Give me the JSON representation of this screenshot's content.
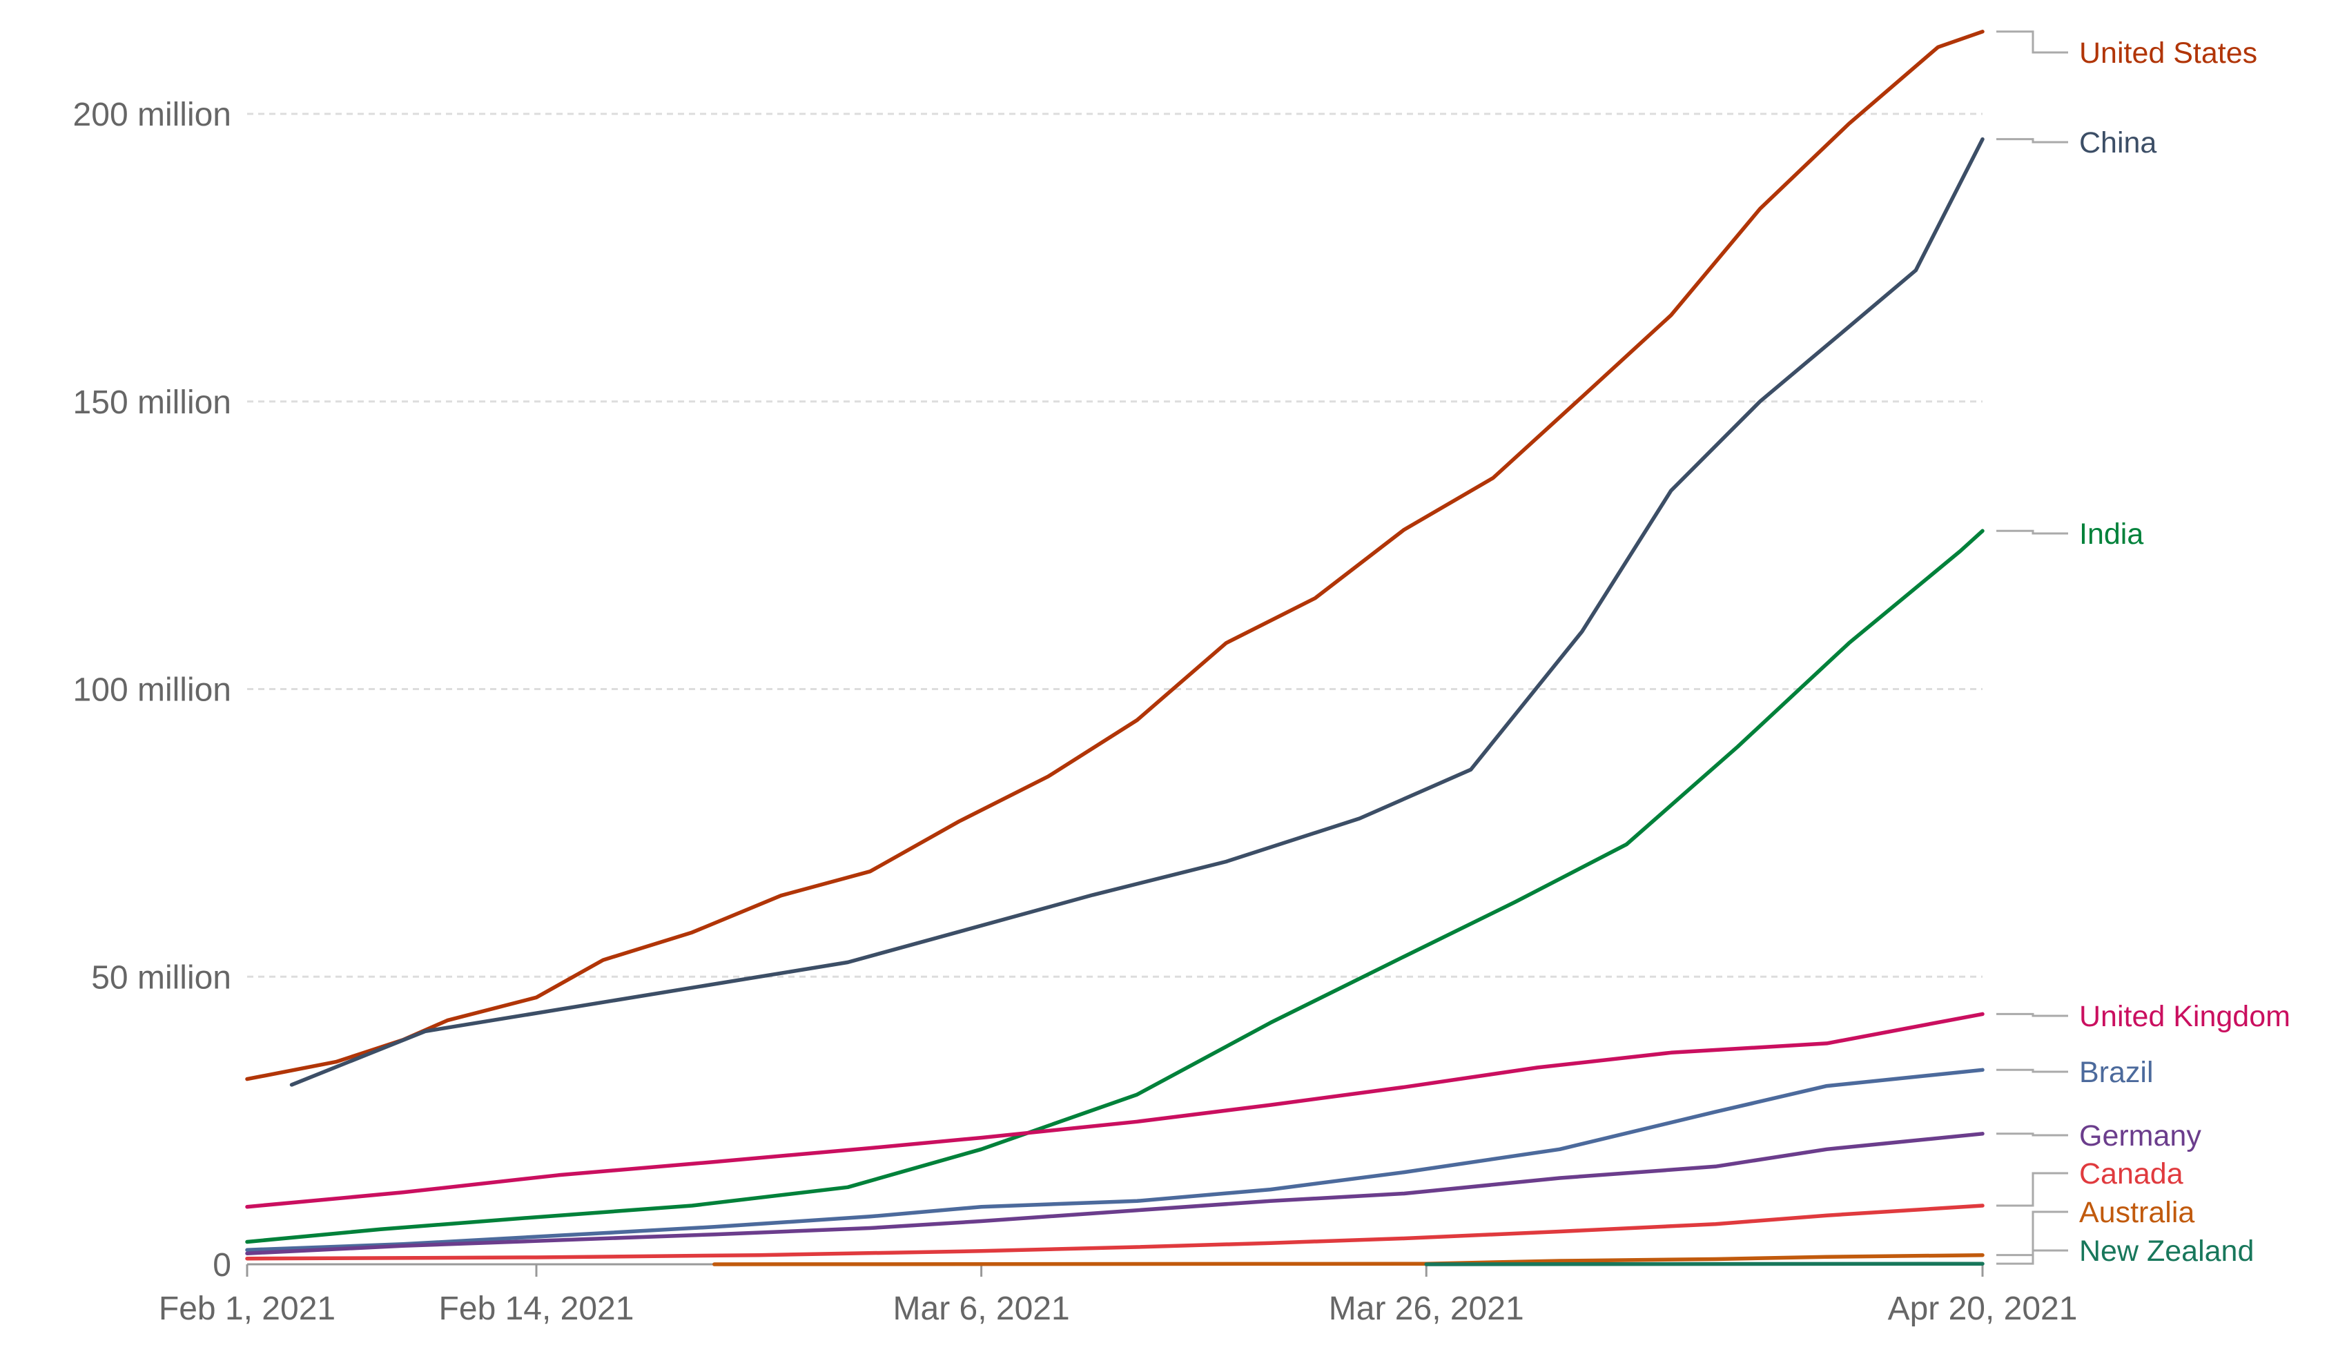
{
  "chart_data": {
    "type": "line",
    "x_range": [
      "2021-02-01",
      "2021-04-20"
    ],
    "ylim": [
      0,
      210000000
    ],
    "y_ticks": [
      {
        "value": 0,
        "label": "0"
      },
      {
        "value": 50000000,
        "label": "50 million"
      },
      {
        "value": 100000000,
        "label": "100 million"
      },
      {
        "value": 150000000,
        "label": "150 million"
      },
      {
        "value": 200000000,
        "label": "200 million"
      }
    ],
    "x_ticks": [
      {
        "date": "2021-02-01",
        "label": "Feb 1, 2021"
      },
      {
        "date": "2021-02-14",
        "label": "Feb 14, 2021"
      },
      {
        "date": "2021-03-06",
        "label": "Mar 6, 2021"
      },
      {
        "date": "2021-03-26",
        "label": "Mar 26, 2021"
      },
      {
        "date": "2021-04-20",
        "label": "Apr 20, 2021"
      }
    ],
    "grid": true,
    "legend": "end-of-line labels on right",
    "series": [
      {
        "name": "United States",
        "color": "#b13507",
        "points": [
          [
            "2021-02-01",
            32.2
          ],
          [
            "2021-02-05",
            35.2
          ],
          [
            "2021-02-08",
            39.0
          ],
          [
            "2021-02-10",
            42.4
          ],
          [
            "2021-02-14",
            46.4
          ],
          [
            "2021-02-17",
            52.9
          ],
          [
            "2021-02-21",
            57.7
          ],
          [
            "2021-02-25",
            64.1
          ],
          [
            "2021-03-01",
            68.3
          ],
          [
            "2021-03-05",
            77.0
          ],
          [
            "2021-03-09",
            84.8
          ],
          [
            "2021-03-13",
            94.6
          ],
          [
            "2021-03-17",
            108.0
          ],
          [
            "2021-03-21",
            115.8
          ],
          [
            "2021-03-25",
            127.7
          ],
          [
            "2021-03-29",
            136.7
          ],
          [
            "2021-04-02",
            150.8
          ],
          [
            "2021-04-06",
            165.0
          ],
          [
            "2021-04-10",
            183.5
          ],
          [
            "2021-04-14",
            198.3
          ],
          [
            "2021-04-18",
            211.6
          ],
          [
            "2021-04-20",
            214.3
          ]
        ]
      },
      {
        "name": "China",
        "color": "#3c4e66",
        "points": [
          [
            "2021-02-03",
            31.2
          ],
          [
            "2021-02-09",
            40.5
          ],
          [
            "2021-02-28",
            52.5
          ],
          [
            "2021-03-11",
            64.2
          ],
          [
            "2021-03-17",
            70.0
          ],
          [
            "2021-03-23",
            77.5
          ],
          [
            "2021-03-28",
            86.0
          ],
          [
            "2021-04-02",
            110.0
          ],
          [
            "2021-04-06",
            134.5
          ],
          [
            "2021-04-10",
            150.0
          ],
          [
            "2021-04-14",
            163.0
          ],
          [
            "2021-04-17",
            172.8
          ],
          [
            "2021-04-20",
            195.6
          ]
        ]
      },
      {
        "name": "India",
        "color": "#00813a",
        "points": [
          [
            "2021-02-01",
            3.9
          ],
          [
            "2021-02-07",
            6.1
          ],
          [
            "2021-02-14",
            8.2
          ],
          [
            "2021-02-21",
            10.2
          ],
          [
            "2021-02-28",
            13.4
          ],
          [
            "2021-03-06",
            20.0
          ],
          [
            "2021-03-13",
            29.5
          ],
          [
            "2021-03-19",
            42.0
          ],
          [
            "2021-03-25",
            53.5
          ],
          [
            "2021-03-30",
            63.0
          ],
          [
            "2021-04-04",
            73.0
          ],
          [
            "2021-04-09",
            90.0
          ],
          [
            "2021-04-14",
            108.0
          ],
          [
            "2021-04-19",
            124.0
          ],
          [
            "2021-04-20",
            127.5
          ]
        ]
      },
      {
        "name": "United Kingdom",
        "color": "#ca0f5f",
        "points": [
          [
            "2021-02-01",
            10.0
          ],
          [
            "2021-02-08",
            12.5
          ],
          [
            "2021-02-15",
            15.5
          ],
          [
            "2021-02-22",
            17.8
          ],
          [
            "2021-03-01",
            20.2
          ],
          [
            "2021-03-06",
            22.0
          ],
          [
            "2021-03-13",
            24.8
          ],
          [
            "2021-03-19",
            27.7
          ],
          [
            "2021-03-25",
            30.8
          ],
          [
            "2021-03-31",
            34.2
          ],
          [
            "2021-04-06",
            36.8
          ],
          [
            "2021-04-13",
            38.4
          ],
          [
            "2021-04-20",
            43.5
          ]
        ]
      },
      {
        "name": "Brazil",
        "color": "#4c6a9c",
        "points": [
          [
            "2021-02-01",
            2.5
          ],
          [
            "2021-02-08",
            3.5
          ],
          [
            "2021-02-15",
            5.0
          ],
          [
            "2021-02-22",
            6.5
          ],
          [
            "2021-03-01",
            8.3
          ],
          [
            "2021-03-06",
            10.0
          ],
          [
            "2021-03-13",
            11.0
          ],
          [
            "2021-03-19",
            13.0
          ],
          [
            "2021-03-25",
            16.0
          ],
          [
            "2021-04-01",
            20.0
          ],
          [
            "2021-04-08",
            26.5
          ],
          [
            "2021-04-13",
            31.0
          ],
          [
            "2021-04-20",
            33.8
          ]
        ]
      },
      {
        "name": "Germany",
        "color": "#6b3d8c",
        "points": [
          [
            "2021-02-01",
            1.9
          ],
          [
            "2021-02-08",
            3.2
          ],
          [
            "2021-02-15",
            4.2
          ],
          [
            "2021-02-22",
            5.2
          ],
          [
            "2021-03-01",
            6.3
          ],
          [
            "2021-03-06",
            7.5
          ],
          [
            "2021-03-13",
            9.4
          ],
          [
            "2021-03-19",
            11.0
          ],
          [
            "2021-03-25",
            12.3
          ],
          [
            "2021-04-01",
            15.0
          ],
          [
            "2021-04-08",
            17.0
          ],
          [
            "2021-04-13",
            20.0
          ],
          [
            "2021-04-20",
            22.7
          ]
        ]
      },
      {
        "name": "Canada",
        "color": "#e03a3e",
        "points": [
          [
            "2021-02-01",
            1.0
          ],
          [
            "2021-02-14",
            1.2
          ],
          [
            "2021-02-24",
            1.6
          ],
          [
            "2021-03-06",
            2.3
          ],
          [
            "2021-03-13",
            3.0
          ],
          [
            "2021-03-19",
            3.7
          ],
          [
            "2021-03-25",
            4.5
          ],
          [
            "2021-04-01",
            5.7
          ],
          [
            "2021-04-08",
            7.0
          ],
          [
            "2021-04-13",
            8.5
          ],
          [
            "2021-04-20",
            10.2
          ]
        ]
      },
      {
        "name": "Australia",
        "color": "#c15a0d",
        "points": [
          [
            "2021-02-22",
            0.0
          ],
          [
            "2021-03-26",
            0.1
          ],
          [
            "2021-04-01",
            0.6
          ],
          [
            "2021-04-08",
            0.9
          ],
          [
            "2021-04-13",
            1.3
          ],
          [
            "2021-04-20",
            1.6
          ]
        ]
      },
      {
        "name": "New Zealand",
        "color": "#18775b",
        "points": [
          [
            "2021-03-26",
            0.0
          ],
          [
            "2021-04-20",
            0.1
          ]
        ]
      }
    ]
  }
}
